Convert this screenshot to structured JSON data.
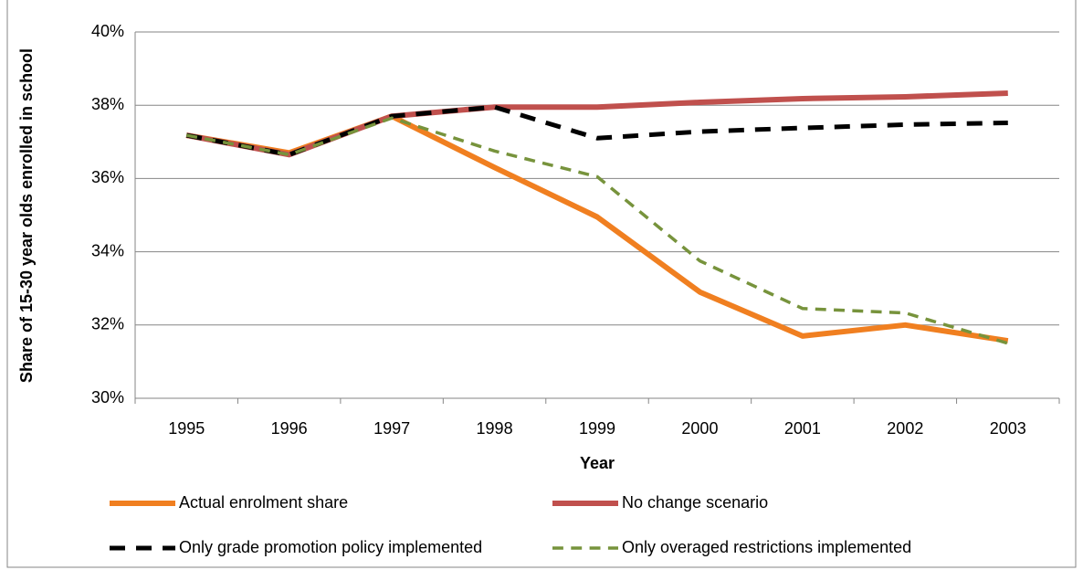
{
  "chart_data": {
    "type": "line",
    "y_label": "Share of 15-30 year olds enrolled in school",
    "x_label": "Year",
    "categories": [
      "1995",
      "1996",
      "1997",
      "1998",
      "1999",
      "2000",
      "2001",
      "2002",
      "2003"
    ],
    "ylim": [
      30,
      40
    ],
    "yticks": [
      {
        "value": 30,
        "label": "30%"
      },
      {
        "value": 32,
        "label": "32%"
      },
      {
        "value": 34,
        "label": "34%"
      },
      {
        "value": 36,
        "label": "36%"
      },
      {
        "value": 38,
        "label": "38%"
      },
      {
        "value": 40,
        "label": "40%"
      }
    ],
    "grid": true,
    "legend": "bottom",
    "series": [
      {
        "name": "Actual enrolment share",
        "color": "#f07f20",
        "dash": "solid",
        "width": 6,
        "values": [
          37.18,
          36.7,
          37.7,
          36.3,
          34.95,
          32.9,
          31.7,
          32.0,
          31.57
        ]
      },
      {
        "name": "No change scenario",
        "color": "#c0504d",
        "dash": "solid",
        "width": 6,
        "values": [
          37.18,
          36.65,
          37.7,
          37.95,
          37.95,
          38.08,
          38.18,
          38.23,
          38.33
        ]
      },
      {
        "name": "Only grade promotion policy implemented",
        "color": "#000000",
        "dash": "dashed",
        "width": 5,
        "values": [
          37.18,
          36.65,
          37.7,
          37.95,
          37.1,
          37.28,
          37.38,
          37.47,
          37.52
        ]
      },
      {
        "name": "Only overaged restrictions implemented",
        "color": "#77933c",
        "dash": "dashed",
        "width": 3.5,
        "values": [
          37.18,
          36.65,
          37.65,
          36.75,
          36.05,
          33.75,
          32.45,
          32.33,
          31.5
        ]
      }
    ]
  }
}
